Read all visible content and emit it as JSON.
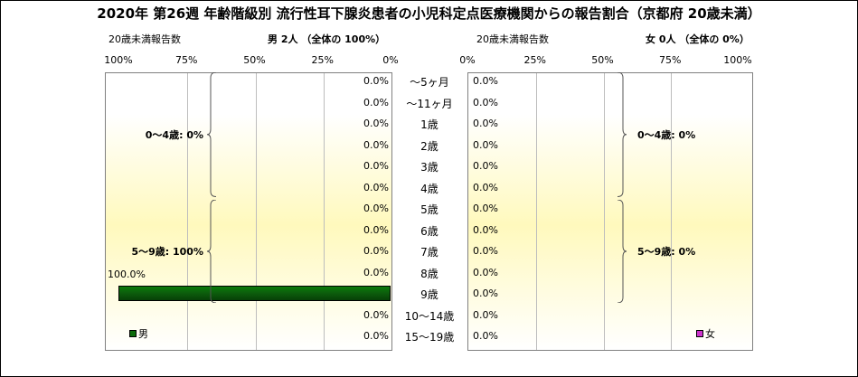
{
  "title": "2020年 第26週 年齢階級別 流行性耳下腺炎患者の小児科定点医療機関からの報告割合（京都府 20歳未満）",
  "left_header": {
    "note": "20歳未満報告数",
    "summary": "男 2人 （全体の 100%）"
  },
  "right_header": {
    "note": "20歳未満報告数",
    "summary": "女 0人 （全体の 0%）"
  },
  "colors": {
    "male": "#0b6b0b",
    "female": "#cc33cc"
  },
  "chart_data": [
    {
      "type": "bar",
      "name": "男",
      "orientation": "horizontal-reversed",
      "xlim": [
        0,
        100
      ],
      "ticks": [
        "100%",
        "75%",
        "50%",
        "25%",
        "0%"
      ],
      "categories": [
        "～5ヶ月",
        "～11ヶ月",
        "1歳",
        "2歳",
        "3歳",
        "4歳",
        "5歳",
        "6歳",
        "7歳",
        "8歳",
        "9歳",
        "10～14歳",
        "15～19歳"
      ],
      "values": [
        0,
        0,
        0,
        0,
        0,
        0,
        0,
        0,
        0,
        0,
        100,
        0,
        0
      ],
      "labels": [
        "0.0%",
        "0.0%",
        "0.0%",
        "0.0%",
        "0.0%",
        "0.0%",
        "0.0%",
        "0.0%",
        "0.0%",
        "0.0%",
        "100.0%",
        "0.0%",
        "0.0%"
      ],
      "groups": [
        {
          "label": "0～4歳: 0%",
          "from": 0,
          "to": 5
        },
        {
          "label": "5～9歳: 100%",
          "from": 6,
          "to": 10
        }
      ],
      "legend": "男",
      "grid": true
    },
    {
      "type": "bar",
      "name": "女",
      "orientation": "horizontal",
      "xlim": [
        0,
        100
      ],
      "ticks": [
        "0%",
        "25%",
        "50%",
        "75%",
        "100%"
      ],
      "categories": [
        "～5ヶ月",
        "～11ヶ月",
        "1歳",
        "2歳",
        "3歳",
        "4歳",
        "5歳",
        "6歳",
        "7歳",
        "8歳",
        "9歳",
        "10～14歳",
        "15～19歳"
      ],
      "values": [
        0,
        0,
        0,
        0,
        0,
        0,
        0,
        0,
        0,
        0,
        0,
        0,
        0
      ],
      "labels": [
        "0.0%",
        "0.0%",
        "0.0%",
        "0.0%",
        "0.0%",
        "0.0%",
        "0.0%",
        "0.0%",
        "0.0%",
        "0.0%",
        "0.0%",
        "0.0%",
        "0.0%"
      ],
      "groups": [
        {
          "label": "0～4歳: 0%",
          "from": 0,
          "to": 5
        },
        {
          "label": "5～9歳: 0%",
          "from": 6,
          "to": 10
        }
      ],
      "legend": "女",
      "grid": true
    }
  ]
}
